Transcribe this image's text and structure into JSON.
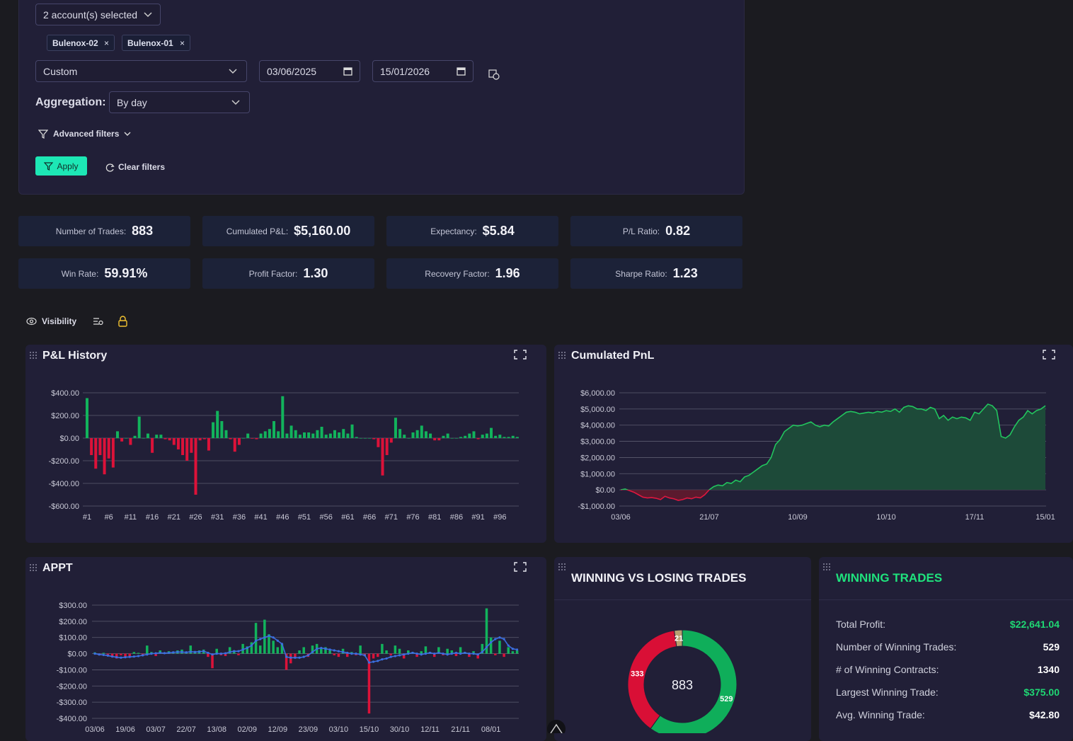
{
  "filters": {
    "accounts": "2 account(s) selected",
    "chips": [
      "Bulenox-02",
      "Bulenox-01"
    ],
    "period": "Custom",
    "start_date": "03/06/2025",
    "end_date": "15/01/2026",
    "aggregation_label": "Aggregation:",
    "aggregation": "By day",
    "advanced": "Advanced filters",
    "apply": "Apply",
    "clear": "Clear filters"
  },
  "stats": [
    {
      "label": "Number of Trades:",
      "value": "883"
    },
    {
      "label": "Cumulated P&L:",
      "value": "$5,160.00"
    },
    {
      "label": "Expectancy:",
      "value": "$5.84"
    },
    {
      "label": "P/L Ratio:",
      "value": "0.82"
    },
    {
      "label": "Win Rate:",
      "value": "59.91%"
    },
    {
      "label": "Profit Factor:",
      "value": "1.30"
    },
    {
      "label": "Recovery Factor:",
      "value": "1.96"
    },
    {
      "label": "Sharpe Ratio:",
      "value": "1.23"
    }
  ],
  "toolbar": {
    "visibility": "Visibility"
  },
  "chart_data": [
    {
      "type": "bar",
      "title": "P&L History",
      "positive_color": "#12b35c",
      "negative_color": "#dc1239",
      "grid": true,
      "categories": [
        "#1",
        null,
        null,
        null,
        null,
        "#6",
        null,
        null,
        null,
        null,
        "#11",
        null,
        null,
        null,
        null,
        "#16",
        null,
        null,
        null,
        null,
        "#21",
        null,
        null,
        null,
        null,
        "#26",
        null,
        null,
        null,
        null,
        "#31",
        null,
        null,
        null,
        null,
        "#36",
        null,
        null,
        null,
        null,
        "#41",
        null,
        null,
        null,
        null,
        "#46",
        null,
        null,
        null,
        null,
        "#51",
        null,
        null,
        null,
        null,
        "#56",
        null,
        null,
        null,
        null,
        "#61",
        null,
        null,
        null,
        null,
        "#66",
        null,
        null,
        null,
        null,
        "#71",
        null,
        null,
        null,
        null,
        "#76",
        null,
        null,
        null,
        null,
        "#81",
        null,
        null,
        null,
        null,
        "#86",
        null,
        null,
        null,
        null,
        "#91",
        null,
        null,
        null,
        null,
        "#96",
        null,
        null,
        null,
        null
      ],
      "values": [
        353,
        -150,
        -270,
        -150,
        -320,
        -180,
        -260,
        60,
        -30,
        0,
        -60,
        20,
        190,
        0,
        40,
        -130,
        30,
        30,
        -10,
        -20,
        -60,
        -100,
        -150,
        -200,
        -130,
        -500,
        -20,
        -10,
        -110,
        140,
        240,
        150,
        70,
        -10,
        -120,
        -60,
        0,
        40,
        -5,
        -10,
        40,
        60,
        80,
        150,
        60,
        370,
        40,
        110,
        70,
        30,
        50,
        50,
        40,
        70,
        100,
        30,
        40,
        70,
        50,
        80,
        40,
        120,
        10,
        0,
        0,
        0,
        -10,
        -80,
        -330,
        -150,
        -40,
        180,
        80,
        30,
        0,
        50,
        70,
        110,
        60,
        40,
        -20,
        -20,
        20,
        40,
        0,
        0,
        10,
        20,
        40,
        60,
        -10,
        30,
        40,
        90,
        20,
        30,
        10,
        10,
        20,
        10
      ],
      "ylim": [
        -600,
        400
      ],
      "yticks": [
        {
          "value": -600,
          "label": "-$600.00"
        },
        {
          "value": -400,
          "label": "-$400.00"
        },
        {
          "value": -200,
          "label": "-$200.00"
        },
        {
          "value": 0,
          "label": "$0.00"
        },
        {
          "value": 200,
          "label": "$200.00"
        },
        {
          "value": 400,
          "label": "$400.00"
        }
      ]
    },
    {
      "type": "area",
      "title": "Cumulated PnL",
      "color": "#22c55e",
      "fill": "#1d4a39",
      "negative_color": "#e0173f",
      "negative_fill": "#5b1a2e",
      "grid": true,
      "categories": [
        "03/06",
        null,
        null,
        null,
        null,
        null,
        null,
        null,
        null,
        null,
        null,
        null,
        null,
        null,
        null,
        null,
        null,
        null,
        null,
        null,
        "21/07",
        null,
        null,
        null,
        null,
        null,
        null,
        null,
        null,
        null,
        null,
        null,
        null,
        null,
        null,
        null,
        null,
        null,
        null,
        null,
        "10/09",
        null,
        null,
        null,
        null,
        null,
        null,
        null,
        null,
        null,
        null,
        null,
        null,
        null,
        null,
        null,
        null,
        null,
        null,
        null,
        "10/10",
        null,
        null,
        null,
        null,
        null,
        null,
        null,
        null,
        null,
        null,
        null,
        null,
        null,
        null,
        null,
        null,
        null,
        null,
        null,
        "17/11",
        null,
        null,
        null,
        null,
        null,
        null,
        null,
        null,
        null,
        null,
        null,
        null,
        null,
        null,
        null,
        "15/01"
      ],
      "values": [
        0,
        50,
        -50,
        -150,
        -300,
        -450,
        -500,
        -480,
        -520,
        -600,
        -400,
        -500,
        -550,
        -650,
        -600,
        -500,
        -550,
        -450,
        -500,
        -300,
        0,
        200,
        300,
        250,
        450,
        400,
        600,
        500,
        800,
        900,
        1100,
        1300,
        1500,
        1600,
        2000,
        2800,
        3100,
        3600,
        3800,
        4000,
        3950,
        4000,
        4100,
        4200,
        4000,
        3900,
        4000,
        3950,
        4200,
        4400,
        4600,
        4800,
        4850,
        4800,
        4700,
        4750,
        4800,
        4750,
        4850,
        4800,
        4900,
        4850,
        5000,
        4800,
        5100,
        5200,
        5150,
        5000,
        5000,
        4900,
        5100,
        5000,
        4400,
        4600,
        4300,
        4500,
        4400,
        4500,
        4450,
        4300,
        4800,
        4700,
        5000,
        5300,
        5200,
        4900,
        3300,
        3200,
        3400,
        3900,
        4300,
        4500,
        4900,
        4700,
        4900,
        5000,
        5200
      ],
      "ylim": [
        -1000,
        6000
      ],
      "yticks": [
        {
          "value": -1000,
          "label": "-$1,000.00"
        },
        {
          "value": 0,
          "label": "$0.00"
        },
        {
          "value": 1000,
          "label": "$1,000.00"
        },
        {
          "value": 2000,
          "label": "$2,000.00"
        },
        {
          "value": 3000,
          "label": "$3,000.00"
        },
        {
          "value": 4000,
          "label": "$4,000.00"
        },
        {
          "value": 5000,
          "label": "$5,000.00"
        },
        {
          "value": 6000,
          "label": "$6,000.00"
        }
      ]
    },
    {
      "type": "bar_line",
      "title": "APPT",
      "grid": true,
      "categories": [
        "03/06",
        null,
        null,
        null,
        null,
        null,
        null,
        "19/06",
        null,
        null,
        null,
        null,
        null,
        null,
        "03/07",
        null,
        null,
        null,
        null,
        null,
        null,
        "22/07",
        null,
        null,
        null,
        null,
        null,
        null,
        "13/08",
        null,
        null,
        null,
        null,
        null,
        null,
        "02/09",
        null,
        null,
        null,
        null,
        null,
        null,
        "12/09",
        null,
        null,
        null,
        null,
        null,
        null,
        "23/09",
        null,
        null,
        null,
        null,
        null,
        null,
        "03/10",
        null,
        null,
        null,
        null,
        null,
        null,
        "15/10",
        null,
        null,
        null,
        null,
        null,
        null,
        "30/10",
        null,
        null,
        null,
        null,
        null,
        null,
        "12/11",
        null,
        null,
        null,
        null,
        null,
        null,
        "21/11",
        null,
        null,
        null,
        null,
        null,
        null,
        "08/01",
        null,
        null,
        null,
        null,
        null,
        null
      ],
      "series": [
        {
          "type": "bar",
          "positive_color": "#12b35c",
          "negative_color": "#dc1239",
          "values": [
            8,
            -10,
            5,
            -15,
            -20,
            -30,
            -10,
            -20,
            -15,
            10,
            5,
            -10,
            50,
            10,
            -15,
            20,
            5,
            15,
            10,
            20,
            25,
            10,
            50,
            15,
            20,
            25,
            -20,
            -90,
            30,
            -10,
            -15,
            40,
            20,
            -10,
            60,
            45,
            70,
            190,
            50,
            210,
            120,
            80,
            40,
            60,
            -100,
            -60,
            -30,
            20,
            40,
            -20,
            50,
            60,
            30,
            40,
            20,
            -10,
            -20,
            30,
            -20,
            10,
            -10,
            50,
            -15,
            -370,
            -30,
            -20,
            60,
            20,
            -10,
            50,
            30,
            -30,
            20,
            10,
            -20,
            15,
            45,
            10,
            -20,
            40,
            -10,
            30,
            20,
            -15,
            40,
            10,
            -20,
            15,
            -30,
            60,
            280,
            100,
            -10,
            80,
            -20,
            40,
            15,
            20
          ]
        },
        {
          "type": "line",
          "color": "#3b6fe0",
          "values": [
            0,
            -5,
            -8,
            -12,
            -18,
            -22,
            -25,
            -22,
            -20,
            -18,
            -15,
            -10,
            -5,
            0,
            2,
            5,
            3,
            5,
            8,
            10,
            10,
            8,
            12,
            10,
            12,
            15,
            5,
            -5,
            0,
            0,
            2,
            10,
            15,
            15,
            25,
            35,
            50,
            80,
            90,
            100,
            110,
            100,
            80,
            60,
            -20,
            -25,
            -25,
            -25,
            -20,
            -10,
            10,
            30,
            35,
            30,
            25,
            20,
            15,
            10,
            5,
            0,
            0,
            -5,
            -10,
            -55,
            -50,
            -45,
            -35,
            -30,
            -20,
            -15,
            -10,
            -5,
            0,
            5,
            0,
            -5,
            0,
            5,
            0,
            5,
            0,
            -5,
            0,
            5,
            0,
            5,
            0,
            0,
            -5,
            10,
            40,
            70,
            90,
            100,
            90,
            50,
            30,
            25
          ]
        }
      ],
      "ylim": [
        -400,
        300
      ],
      "yticks": [
        {
          "value": -400,
          "label": "-$400.00"
        },
        {
          "value": -300,
          "label": "-$300.00"
        },
        {
          "value": -200,
          "label": "-$200.00"
        },
        {
          "value": -100,
          "label": "-$100.00"
        },
        {
          "value": 0,
          "label": "$0.00"
        },
        {
          "value": 100,
          "label": "$100.00"
        },
        {
          "value": 200,
          "label": "$200.00"
        },
        {
          "value": 300,
          "label": "$300.00"
        }
      ]
    },
    {
      "type": "donut",
      "title": "WINNING VS LOSING TRADES",
      "total": 883,
      "values": [
        529,
        333,
        21
      ],
      "colors": [
        "#0fae5a",
        "#d90f36",
        "#b8a070"
      ]
    }
  ],
  "winning_trades": {
    "title": "WINNING TRADES",
    "rows": [
      {
        "label": "Total Profit:",
        "value": "$22,641.04",
        "highlight": true
      },
      {
        "label": "Number of Winning Trades:",
        "value": "529",
        "highlight": false
      },
      {
        "label": "# of Winning Contracts:",
        "value": "1340",
        "highlight": false
      },
      {
        "label": "Largest Winning Trade:",
        "value": "$375.00",
        "highlight": true
      },
      {
        "label": "Avg. Winning Trade:",
        "value": "$42.80",
        "highlight": false
      }
    ]
  }
}
